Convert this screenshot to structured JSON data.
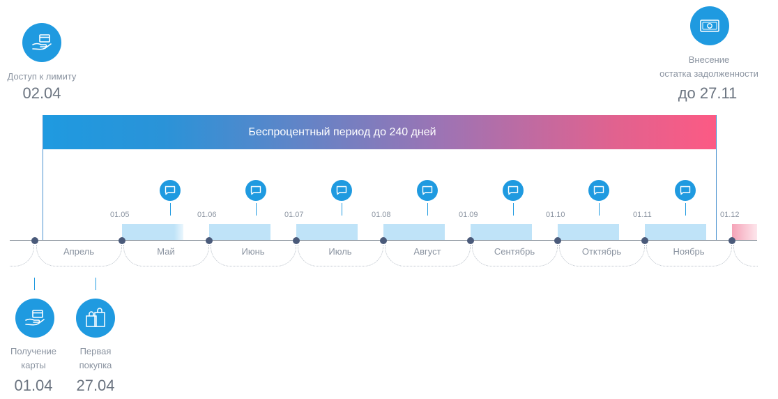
{
  "access": {
    "label": "Доступ к лимиту",
    "date": "02.04"
  },
  "payoff": {
    "label_line1": "Внесение",
    "label_line2": "остатка задолженности",
    "date": "до 27.11"
  },
  "grace_bar": {
    "text": "Беспроцентный период до 240 дней"
  },
  "months": [
    "Апрель",
    "Май",
    "Июнь",
    "Июль",
    "Август",
    "Сентябрь",
    "Отктябрь",
    "Ноябрь"
  ],
  "month_dates": [
    "01.05",
    "01.06",
    "01.07",
    "01.08",
    "01.09",
    "01.10",
    "01.11",
    "01.12"
  ],
  "card": {
    "label_line1": "Получение",
    "label_line2": "карты",
    "date": "01.04"
  },
  "purchase": {
    "label_line1": "Первая",
    "label_line2": "покупка",
    "date": "27.04"
  },
  "icons": {
    "access": "hand-card-icon",
    "payoff": "banknote-icon",
    "card": "hand-card-icon",
    "purchase": "shopping-bags-icon",
    "notice": "chat-bubble-icon"
  },
  "colors": {
    "accent": "#1f9ae0",
    "gradient_end": "#fc5a84",
    "block": "#bfe3f8"
  }
}
